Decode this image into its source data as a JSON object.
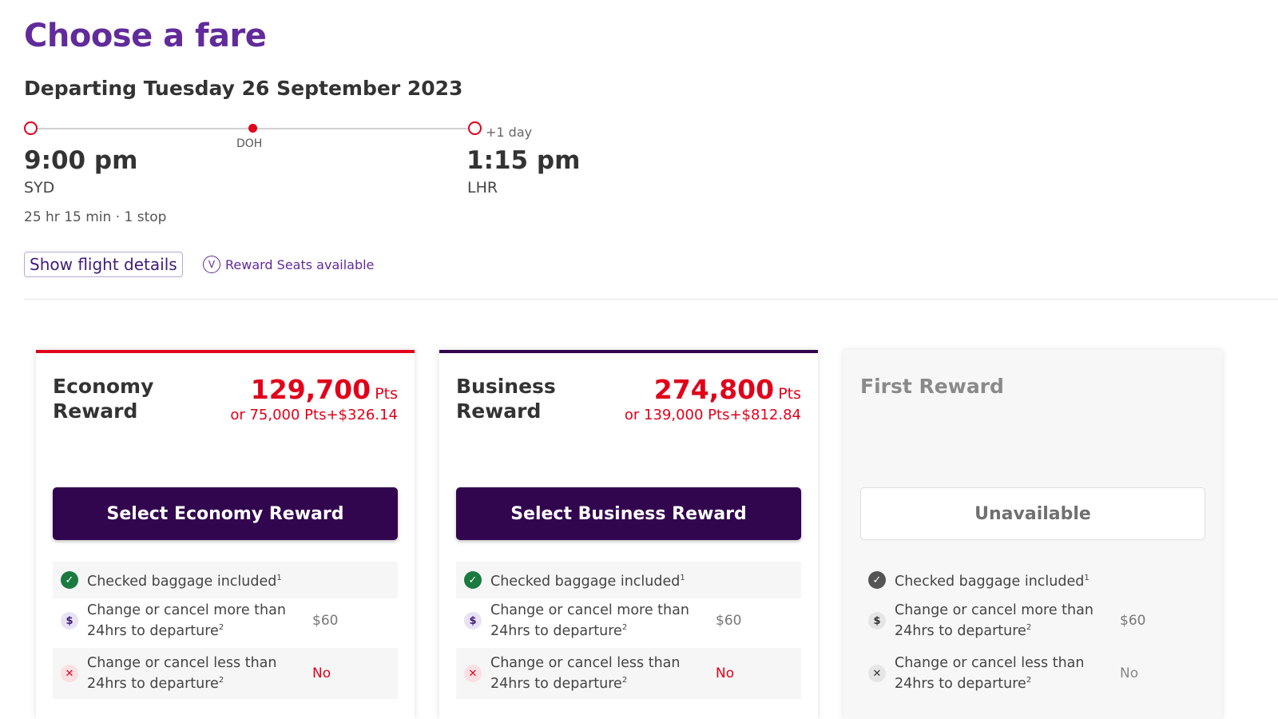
{
  "page": {
    "title": "Choose a fare",
    "departing": "Departing Tuesday 26 September 2023"
  },
  "flight": {
    "depart_time": "9:00 pm",
    "depart_airport": "SYD",
    "stop_airport": "DOH",
    "arrive_time": "1:15 pm",
    "arrive_airport": "LHR",
    "plus_day": "+1 day",
    "duration": "25 hr 15 min · 1 stop",
    "show_details_label": "Show flight details",
    "reward_seats_label": "Reward Seats available",
    "reward_seats_icon": "V"
  },
  "colors": {
    "title_purple": "#612b9b",
    "brand_red": "#e1001a",
    "button_dark_purple": "#32064f"
  },
  "fares": [
    {
      "name": "Economy Reward",
      "points": "129,700",
      "points_unit": "Pts",
      "alt_price": "or 75,000 Pts+$326.14",
      "button_label": "Select Economy Reward",
      "available": true,
      "bar_color": "#e1001a",
      "features": [
        {
          "icon": "check-icon",
          "text": "Checked baggage included",
          "note": "1",
          "value": ""
        },
        {
          "icon": "dollar-icon",
          "text": "Change or cancel more than 24hrs to departure",
          "note": "2",
          "value": "$60"
        },
        {
          "icon": "cross-icon",
          "text": "Change or cancel less than 24hrs to departure",
          "note": "2",
          "value": "No"
        }
      ]
    },
    {
      "name": "Business Reward",
      "points": "274,800",
      "points_unit": "Pts",
      "alt_price": "or 139,000 Pts+$812.84",
      "button_label": "Select Business Reward",
      "available": true,
      "bar_color": "#32064f",
      "features": [
        {
          "icon": "check-icon",
          "text": "Checked baggage included",
          "note": "1",
          "value": ""
        },
        {
          "icon": "dollar-icon",
          "text": "Change or cancel more than 24hrs to departure",
          "note": "2",
          "value": "$60"
        },
        {
          "icon": "cross-icon",
          "text": "Change or cancel less than 24hrs to departure",
          "note": "2",
          "value": "No"
        }
      ]
    },
    {
      "name": "First Reward",
      "points": "",
      "points_unit": "",
      "alt_price": "",
      "button_label": "Unavailable",
      "available": false,
      "bar_color": "",
      "features": [
        {
          "icon": "check-icon",
          "text": "Checked baggage included",
          "note": "1",
          "value": ""
        },
        {
          "icon": "dollar-icon",
          "text": "Change or cancel more than 24hrs to departure",
          "note": "2",
          "value": "$60"
        },
        {
          "icon": "cross-icon",
          "text": "Change or cancel less than 24hrs to departure",
          "note": "2",
          "value": "No"
        }
      ]
    }
  ]
}
